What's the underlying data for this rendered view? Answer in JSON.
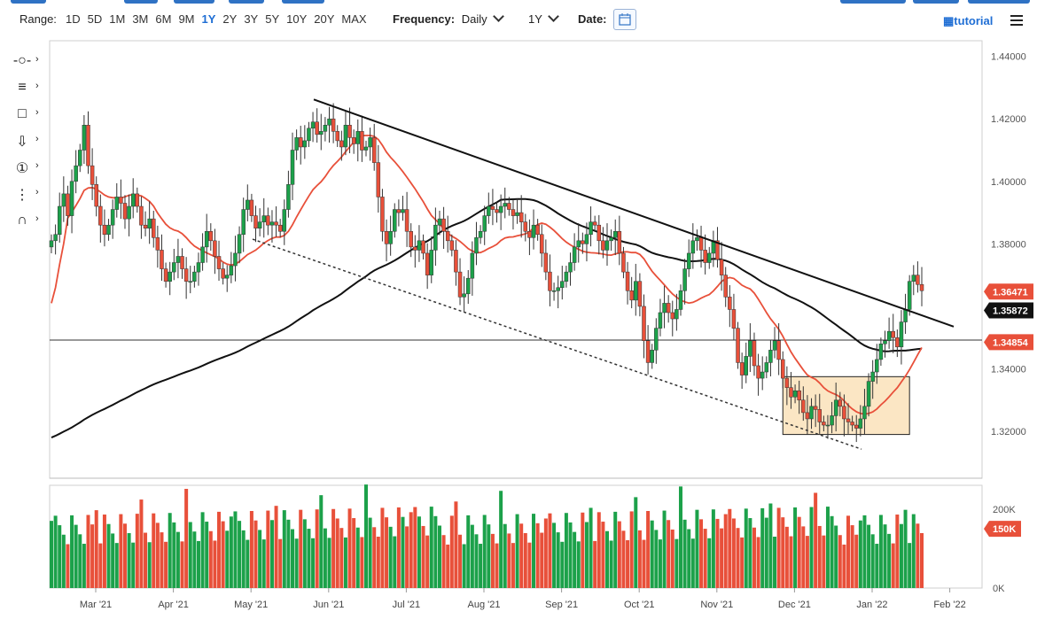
{
  "toolbar": {
    "range_label": "Range:",
    "ranges": [
      "1D",
      "5D",
      "1M",
      "3M",
      "6M",
      "9M",
      "1Y",
      "2Y",
      "3Y",
      "5Y",
      "10Y",
      "20Y",
      "MAX"
    ],
    "active_range": "1Y",
    "frequency_label": "Frequency:",
    "frequency_value": "Daily",
    "period_value": "1Y",
    "date_label": "Date:",
    "tutorial_label": "tutorial",
    "accent_color": "#1f6ed4"
  },
  "tools": [
    {
      "name": "crosshair-tool",
      "icon": "-○-"
    },
    {
      "name": "fib-tool",
      "icon": "≡"
    },
    {
      "name": "shape-tool",
      "icon": "□"
    },
    {
      "name": "arrow-tool",
      "icon": "⇩"
    },
    {
      "name": "annotation-tool",
      "icon": "①"
    },
    {
      "name": "pattern-tool",
      "icon": "⋮"
    },
    {
      "name": "magnet-tool",
      "icon": "∩"
    }
  ],
  "chart_data": {
    "type": "candlestick",
    "ylim": [
      1.305,
      1.445
    ],
    "y_ticks": [
      "1.44000",
      "1.42000",
      "1.40000",
      "1.38000",
      "1.36000",
      "1.34000",
      "1.32000"
    ],
    "x_ticks": [
      "Mar '21",
      "Apr '21",
      "May '21",
      "Jun '21",
      "Jul '21",
      "Aug '21",
      "Sep '21",
      "Oct '21",
      "Nov '21",
      "Dec '21",
      "Jan '22",
      "Feb '22"
    ],
    "price_badges": [
      {
        "label": "1.36471",
        "value": 1.36471,
        "color": "#e8503a"
      },
      {
        "label": "1.35872",
        "value": 1.35872,
        "color": "#111111"
      },
      {
        "label": "1.34854",
        "value": 1.34854,
        "color": "#e8503a"
      }
    ],
    "horizontal_line": 1.3492,
    "volume": {
      "ticks": [
        "200K",
        "150K",
        "0K"
      ],
      "badge": "150K",
      "max": 260
    },
    "colors": {
      "up": "#1ca14a",
      "down": "#e8503a",
      "ma_short": "#e8503a",
      "ma_long": "#111111",
      "box": "#fbe6c4"
    },
    "close_series": [
      1.381,
      1.383,
      1.392,
      1.396,
      1.389,
      1.4,
      1.405,
      1.41,
      1.418,
      1.405,
      1.399,
      1.392,
      1.386,
      1.383,
      1.386,
      1.391,
      1.395,
      1.393,
      1.388,
      1.392,
      1.396,
      1.392,
      1.386,
      1.385,
      1.388,
      1.382,
      1.378,
      1.372,
      1.368,
      1.371,
      1.374,
      1.376,
      1.372,
      1.368,
      1.368,
      1.371,
      1.374,
      1.379,
      1.384,
      1.381,
      1.376,
      1.372,
      1.369,
      1.37,
      1.373,
      1.377,
      1.383,
      1.391,
      1.394,
      1.389,
      1.385,
      1.387,
      1.389,
      1.386,
      1.387,
      1.386,
      1.384,
      1.391,
      1.399,
      1.41,
      1.414,
      1.411,
      1.413,
      1.417,
      1.419,
      1.415,
      1.416,
      1.418,
      1.42,
      1.416,
      1.413,
      1.411,
      1.418,
      1.414,
      1.412,
      1.416,
      1.41,
      1.411,
      1.414,
      1.406,
      1.395,
      1.384,
      1.38,
      1.384,
      1.391,
      1.39,
      1.391,
      1.384,
      1.379,
      1.378,
      1.381,
      1.377,
      1.37,
      1.378,
      1.386,
      1.388,
      1.384,
      1.381,
      1.378,
      1.371,
      1.363,
      1.364,
      1.369,
      1.377,
      1.382,
      1.384,
      1.389,
      1.392,
      1.391,
      1.39,
      1.392,
      1.393,
      1.391,
      1.389,
      1.39,
      1.387,
      1.384,
      1.382,
      1.386,
      1.383,
      1.377,
      1.371,
      1.365,
      1.365,
      1.366,
      1.368,
      1.371,
      1.374,
      1.379,
      1.381,
      1.38,
      1.383,
      1.387,
      1.386,
      1.381,
      1.378,
      1.381,
      1.382,
      1.384,
      1.377,
      1.371,
      1.365,
      1.362,
      1.368,
      1.36,
      1.349,
      1.342,
      1.346,
      1.353,
      1.358,
      1.361,
      1.358,
      1.356,
      1.359,
      1.365,
      1.372,
      1.377,
      1.381,
      1.382,
      1.378,
      1.374,
      1.377,
      1.381,
      1.375,
      1.37,
      1.363,
      1.359,
      1.353,
      1.342,
      1.338,
      1.344,
      1.349,
      1.341,
      1.337,
      1.339,
      1.342,
      1.346,
      1.349,
      1.343,
      1.337,
      1.334,
      1.331,
      1.333,
      1.33,
      1.326,
      1.324,
      1.328,
      1.327,
      1.323,
      1.322,
      1.322,
      1.325,
      1.33,
      1.328,
      1.324,
      1.323,
      1.322,
      1.321,
      1.324,
      1.328,
      1.336,
      1.339,
      1.343,
      1.348,
      1.349,
      1.352,
      1.35,
      1.347,
      1.355,
      1.359,
      1.368,
      1.37,
      1.367,
      1.365
    ]
  }
}
